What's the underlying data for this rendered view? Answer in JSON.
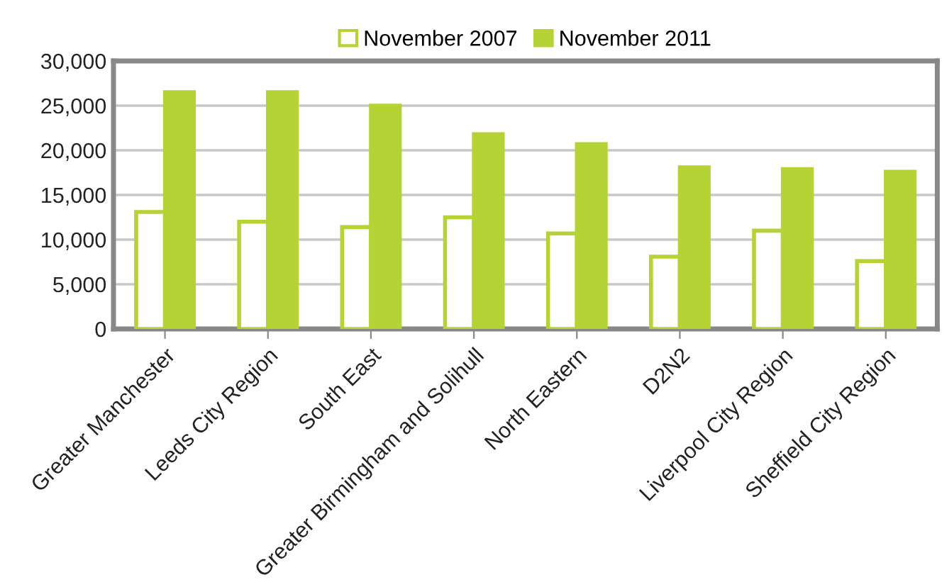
{
  "chart_data": {
    "type": "bar",
    "categories": [
      "Greater Manchester",
      "Leeds City Region",
      "South East",
      "Greater Birmingham and Solihull",
      "North Eastern",
      "D2N2",
      "Liverpool City Region",
      "Sheffield City Region"
    ],
    "series": [
      {
        "name": "November 2007",
        "color": "#b5d334",
        "values": [
          13100,
          12000,
          11400,
          12500,
          10700,
          8100,
          11000,
          7600
        ]
      },
      {
        "name": "November 2011",
        "color": "#b5d334",
        "values": [
          26500,
          26500,
          25000,
          21800,
          20700,
          18100,
          17900,
          17600
        ]
      }
    ],
    "ylim": [
      0,
      30000
    ],
    "yticks": [
      {
        "value": 0,
        "label": "0"
      },
      {
        "value": 5000,
        "label": "5,000"
      },
      {
        "value": 10000,
        "label": "10,000"
      },
      {
        "value": 15000,
        "label": "15,000"
      },
      {
        "value": 20000,
        "label": "20,000"
      },
      {
        "value": 25000,
        "label": "25,000"
      },
      {
        "value": 30000,
        "label": "30,000"
      }
    ],
    "grid": "y",
    "legend": "top"
  }
}
